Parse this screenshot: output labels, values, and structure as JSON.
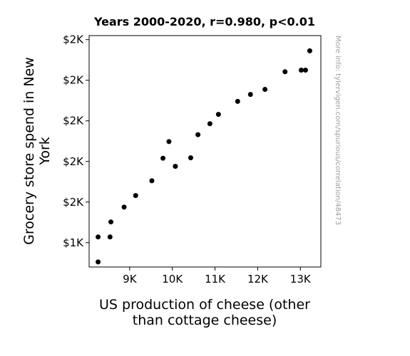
{
  "chart_data": {
    "type": "scatter",
    "title": "Years 2000-2020, r=0.980, p<0.01",
    "xlabel": [
      "US production of cheese (other",
      "than cottage cheese)"
    ],
    "ylabel": [
      "Grocery store spend in New",
      "York"
    ],
    "watermark": "More info: tylervigen.com/spurious/correlation/48473",
    "xlim": [
      8050,
      13480
    ],
    "ylim": [
      1280,
      2420
    ],
    "x_ticks": [
      {
        "value": 9000,
        "label": "9K"
      },
      {
        "value": 10000,
        "label": "10K"
      },
      {
        "value": 11000,
        "label": "11K"
      },
      {
        "value": 12000,
        "label": "12K"
      },
      {
        "value": 13000,
        "label": "13K"
      }
    ],
    "y_ticks": [
      {
        "value": 1400,
        "label": "$1K"
      },
      {
        "value": 1600,
        "label": "$2K"
      },
      {
        "value": 1800,
        "label": "$2K"
      },
      {
        "value": 2000,
        "label": "$2K"
      },
      {
        "value": 2200,
        "label": "$2K"
      },
      {
        "value": 2400,
        "label": "$2K"
      }
    ],
    "points": [
      {
        "x": 8260,
        "y": 1305
      },
      {
        "x": 8260,
        "y": 1428
      },
      {
        "x": 8540,
        "y": 1428
      },
      {
        "x": 8560,
        "y": 1502
      },
      {
        "x": 8870,
        "y": 1575
      },
      {
        "x": 9140,
        "y": 1632
      },
      {
        "x": 9520,
        "y": 1705
      },
      {
        "x": 9780,
        "y": 1816
      },
      {
        "x": 9920,
        "y": 1898
      },
      {
        "x": 10070,
        "y": 1776
      },
      {
        "x": 10430,
        "y": 1818
      },
      {
        "x": 10600,
        "y": 1932
      },
      {
        "x": 10880,
        "y": 1986
      },
      {
        "x": 11080,
        "y": 2032
      },
      {
        "x": 11530,
        "y": 2096
      },
      {
        "x": 11830,
        "y": 2130
      },
      {
        "x": 12170,
        "y": 2155
      },
      {
        "x": 12640,
        "y": 2242
      },
      {
        "x": 13020,
        "y": 2250
      },
      {
        "x": 13120,
        "y": 2250
      },
      {
        "x": 13220,
        "y": 2345
      }
    ],
    "marker_color": "#000000",
    "grid": false,
    "legend": "none"
  }
}
